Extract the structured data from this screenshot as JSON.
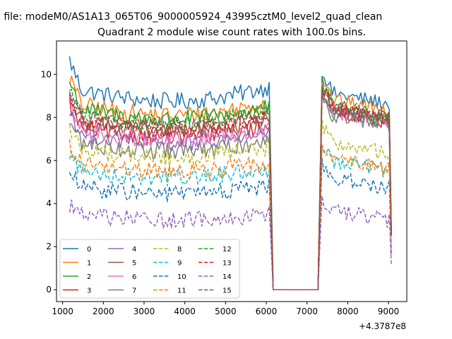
{
  "figure": {
    "suptitle": "n file: modeM0/AS1A13_065T06_9000005924_43995cztM0_level2_quad_clean",
    "offset_label": "+4.3787e8"
  },
  "chart_data": {
    "type": "line",
    "title": "Quadrant 2 module wise count rates with 100.0s bins.",
    "xlabel": "",
    "ylabel": "",
    "xlim": [
      850,
      9450
    ],
    "ylim": [
      -0.55,
      11.55
    ],
    "x_ticks": [
      1000,
      2000,
      3000,
      4000,
      5000,
      6000,
      7000,
      8000,
      9000
    ],
    "y_ticks": [
      0,
      2,
      4,
      6,
      8,
      10
    ],
    "x_tick_labels": [
      "1000",
      "2000",
      "3000",
      "4000",
      "5000",
      "6000",
      "7000",
      "8000",
      "9000"
    ],
    "y_tick_labels": [
      "0",
      "2",
      "4",
      "6",
      "8",
      "10"
    ],
    "grid": false,
    "legend_position": "lower-left",
    "legend_columns": 4,
    "x_segments": [
      [
        1170,
        6070
      ],
      [
        6170,
        7270
      ],
      [
        7370,
        9070
      ]
    ],
    "gap_x": [
      6170,
      7270
    ],
    "series": [
      {
        "name": "0",
        "color": "#1f77b4",
        "dash": "solid",
        "level1": 9.4,
        "level2": 9.2
      },
      {
        "name": "1",
        "color": "#ff7f0e",
        "dash": "solid",
        "level1": 8.7,
        "level2": 8.9
      },
      {
        "name": "2",
        "color": "#2ca02c",
        "dash": "solid",
        "level1": 8.5,
        "level2": 8.6
      },
      {
        "name": "3",
        "color": "#d62728",
        "dash": "solid",
        "level1": 7.6,
        "level2": 8.4
      },
      {
        "name": "4",
        "color": "#9467bd",
        "dash": "solid",
        "level1": 7.3,
        "level2": 8.3
      },
      {
        "name": "5",
        "color": "#8c564b",
        "dash": "solid",
        "level1": 7.9,
        "level2": 8.5
      },
      {
        "name": "6",
        "color": "#e377c2",
        "dash": "solid",
        "level1": 7.5,
        "level2": 8.4
      },
      {
        "name": "7",
        "color": "#7f7f7f",
        "dash": "solid",
        "level1": 6.9,
        "level2": 8.2
      },
      {
        "name": "8",
        "color": "#bcbd22",
        "dash": "dashed",
        "level1": 6.6,
        "level2": 6.9
      },
      {
        "name": "9",
        "color": "#17becf",
        "dash": "dashed",
        "level1": 5.6,
        "level2": 6.1
      },
      {
        "name": "10",
        "color": "#1f77b4",
        "dash": "dashed",
        "level1": 4.8,
        "level2": 5.3
      },
      {
        "name": "11",
        "color": "#ff7f0e",
        "dash": "dashed",
        "level1": 5.9,
        "level2": 6.2
      },
      {
        "name": "12",
        "color": "#2ca02c",
        "dash": "dashed",
        "level1": 8.3,
        "level2": 8.4
      },
      {
        "name": "13",
        "color": "#d62728",
        "dash": "dashed",
        "level1": 8.0,
        "level2": 8.5
      },
      {
        "name": "14",
        "color": "#9467bd",
        "dash": "dashed",
        "level1": 3.5,
        "level2": 3.8
      },
      {
        "name": "15",
        "color": "#8c564b",
        "dash": "dashed",
        "level1": 8.1,
        "level2": 8.6
      }
    ]
  }
}
